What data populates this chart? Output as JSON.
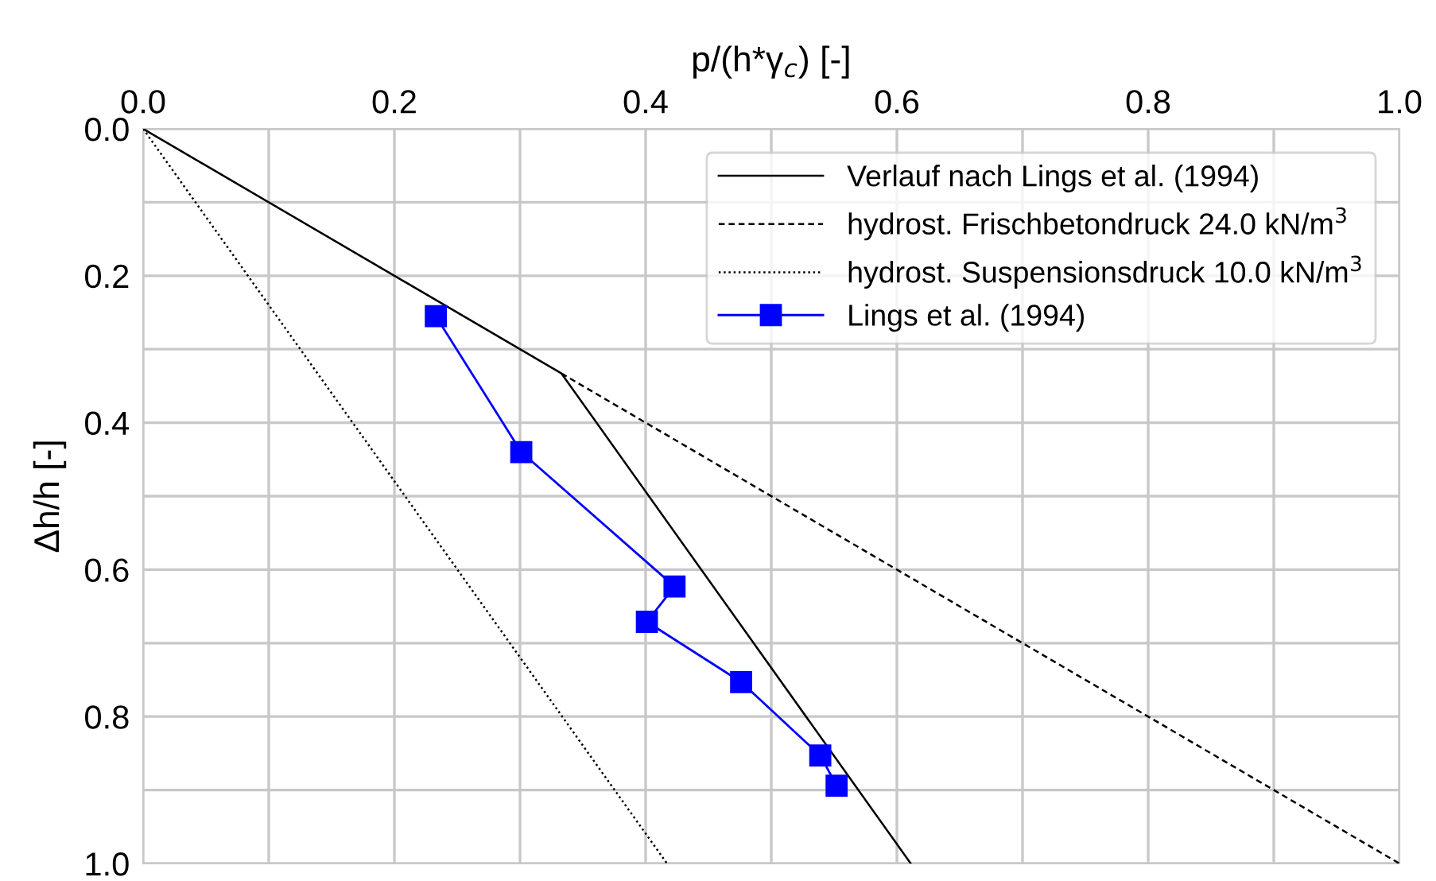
{
  "chart_data": {
    "type": "line",
    "xlabel": "p/(h*γ$_{c}$) [-]",
    "ylabel": "Δh/h [-]",
    "xlim": [
      0,
      1.0
    ],
    "ylim": [
      1.0,
      0
    ],
    "xticks": [
      {
        "value": 0,
        "label": "0.0"
      },
      {
        "value": 0.1,
        "label": null
      },
      0.2,
      {
        "value": 0.3,
        "label": null
      },
      0.4,
      {
        "value": 0.5,
        "label": null
      },
      0.6,
      {
        "value": 0.7,
        "label": null
      },
      0.8,
      {
        "value": 0.9,
        "label": null
      },
      {
        "value": 1,
        "label": "1.0"
      }
    ],
    "yticks": [
      {
        "value": 0,
        "label": "0.0"
      },
      {
        "value": 0.1,
        "label": null
      },
      0.2,
      {
        "value": 0.3,
        "label": null
      },
      0.4,
      {
        "value": 0.5,
        "label": null
      },
      0.6,
      {
        "value": 0.7,
        "label": null
      },
      0.8,
      {
        "value": 0.9,
        "label": null
      },
      {
        "value": 1,
        "label": "1.0"
      }
    ],
    "grid": true,
    "legend": "top right",
    "series": [
      {
        "name": "Verlauf nach Lings et al. (1994)",
        "color": "#000000",
        "line_style": "solid",
        "marker": "none",
        "x": [
          0,
          0.333,
          0.611
        ],
        "values": [
          0,
          0.333,
          1.0
        ]
      },
      {
        "name": "hydrost. Frischbetondruck 24.0 kN/m$^{3}$",
        "color": "#000000",
        "line_style": "dashed",
        "marker": "none",
        "x": [
          0.333,
          1.0
        ],
        "values": [
          0.333,
          1.0
        ]
      },
      {
        "name": "hydrost. Suspensionsdruck 10.0 kN/m$^{3}$",
        "color": "#000000",
        "line_style": "dotted",
        "marker": "none",
        "x": [
          0,
          0.417
        ],
        "values": [
          0,
          1.0
        ]
      },
      {
        "name": "Lings et al. (1994)",
        "color": "#0000ff",
        "line_style": "solid",
        "marker": "square",
        "x": [
          0.233,
          0.301,
          0.423,
          0.401,
          0.476,
          0.539,
          0.552
        ],
        "values": [
          0.255,
          0.44,
          0.623,
          0.671,
          0.753,
          0.853,
          0.894
        ]
      }
    ]
  }
}
